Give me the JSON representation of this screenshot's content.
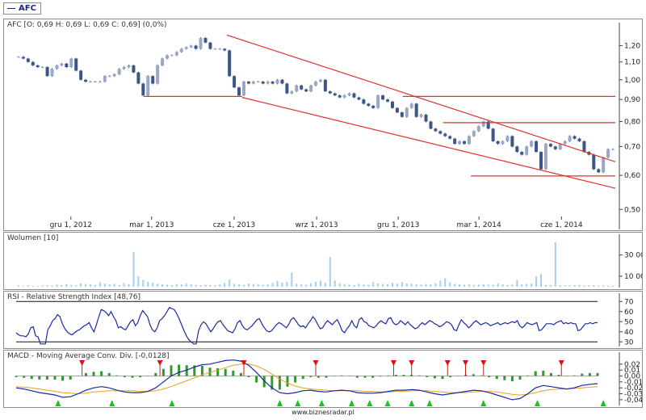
{
  "ticker_tag": "AFC",
  "footer": "www.biznesradar.pl",
  "chart_data": [
    {
      "type": "candlestick",
      "title": "AFC [O: 0,69  H: 0,69  L: 0,69  C: 0,69] (0,0%)",
      "ylim": [
        0.49,
        1.3
      ],
      "log_scale": true,
      "yticks": [
        0.5,
        0.6,
        0.7,
        0.8,
        0.9,
        1.0,
        1.1,
        1.2
      ],
      "ytick_labels": [
        "0,50",
        "0,60",
        "0,70",
        "0,80",
        "0,90",
        "1,00",
        "1,10",
        "1,20"
      ],
      "xticks": [
        {
          "label": "gru 1, 2012",
          "date": "2012-12-01"
        },
        {
          "label": "mar 1, 2013",
          "date": "2013-03-01"
        },
        {
          "label": "cze 1, 2013",
          "date": "2013-06-01"
        },
        {
          "label": "wrz 1, 2013",
          "date": "2013-09-01"
        },
        {
          "label": "gru 1, 2013",
          "date": "2013-12-01"
        },
        {
          "label": "mar 1, 2014",
          "date": "2014-03-01"
        },
        {
          "label": "cze 1, 2014",
          "date": "2014-06-01"
        }
      ],
      "xrange": [
        "2012-10-01",
        "2014-07-31"
      ],
      "up_color": "#9aa8c6",
      "down_color": "#3c5688",
      "closes": [
        1.13,
        1.12,
        1.1,
        1.08,
        1.07,
        1.07,
        1.02,
        1.06,
        1.08,
        1.09,
        1.07,
        1.12,
        1.05,
        1.0,
        0.99,
        0.99,
        0.99,
        0.99,
        1.02,
        1.02,
        1.03,
        1.06,
        1.07,
        1.08,
        1.04,
        0.98,
        0.92,
        1.02,
        0.98,
        1.08,
        1.12,
        1.14,
        1.14,
        1.16,
        1.18,
        1.19,
        1.2,
        1.18,
        1.25,
        1.22,
        1.18,
        1.18,
        1.18,
        1.17,
        1.02,
        0.96,
        0.92,
        0.99,
        0.98,
        0.99,
        0.99,
        0.98,
        0.99,
        0.98,
        1.0,
        0.98,
        0.93,
        0.94,
        0.97,
        0.95,
        0.94,
        0.97,
        0.99,
        1.0,
        0.94,
        0.93,
        0.92,
        0.91,
        0.92,
        0.93,
        0.91,
        0.9,
        0.88,
        0.87,
        0.86,
        0.92,
        0.9,
        0.89,
        0.86,
        0.84,
        0.82,
        0.86,
        0.88,
        0.82,
        0.83,
        0.8,
        0.77,
        0.76,
        0.75,
        0.74,
        0.73,
        0.71,
        0.72,
        0.71,
        0.74,
        0.76,
        0.78,
        0.8,
        0.77,
        0.72,
        0.71,
        0.72,
        0.74,
        0.7,
        0.68,
        0.67,
        0.7,
        0.72,
        0.68,
        0.62,
        0.71,
        0.7,
        0.69,
        0.71,
        0.72,
        0.74,
        0.73,
        0.72,
        0.68,
        0.67,
        0.62,
        0.61,
        0.66,
        0.69,
        0.69
      ],
      "channel_lines": [
        {
          "from": [
            "2013-05-24",
            1.27
          ],
          "to": [
            "2014-07-31",
            0.645
          ]
        },
        {
          "from": [
            "2013-06-10",
            0.91
          ],
          "to": [
            "2014-07-31",
            0.56
          ]
        }
      ],
      "horizontal_lines": [
        {
          "from": "2013-02-20",
          "to": "2013-06-10",
          "value": 0.915
        },
        {
          "from": "2013-12-06",
          "to": "2014-07-31",
          "value": 0.915
        },
        {
          "from": "2014-01-20",
          "to": "2014-07-31",
          "value": 0.795
        },
        {
          "from": "2014-02-20",
          "to": "2014-07-31",
          "value": 0.598
        }
      ],
      "line_color": "#e03030"
    },
    {
      "type": "bar",
      "title": "Wolumen [10]",
      "ylim": [
        0,
        45000
      ],
      "yticks": [
        10000,
        30000
      ],
      "ytick_labels": [
        "10 000",
        "30 000"
      ],
      "color": "#a6cef2",
      "values": [
        1200,
        800,
        1500,
        900,
        700,
        1100,
        1300,
        900,
        2100,
        1600,
        2500,
        1800,
        1400,
        3200,
        2600,
        2200,
        1700,
        4200,
        3000,
        2400,
        2800,
        1700,
        3500,
        2600,
        33000,
        10000,
        6500,
        4800,
        3800,
        2800,
        2300,
        1900,
        1600,
        2700,
        2200,
        3000,
        2200,
        1800,
        1400,
        2000,
        1700,
        1500,
        2400,
        3600,
        6800,
        2800,
        2200,
        1800,
        3000,
        2600,
        2400,
        1900,
        2200,
        3400,
        5600,
        3800,
        4600,
        13500,
        3000,
        2400,
        2000,
        3200,
        4600,
        5800,
        3800,
        28000,
        5800,
        3300,
        2700,
        2000,
        1600,
        2700,
        2100,
        1900,
        4600,
        3100,
        2700,
        2400,
        3600,
        2800,
        4300,
        3000,
        2900,
        2200,
        2000,
        2600,
        2200,
        3300,
        5800,
        8000,
        4100,
        2700,
        2300,
        1900,
        2200,
        1700,
        2000,
        2500,
        2000,
        1800,
        3200,
        2300,
        1700,
        2000,
        6600,
        2200,
        2600,
        3000,
        9800,
        12000,
        1800,
        1600,
        42000,
        1500,
        1300,
        1200,
        1500,
        1800,
        1200,
        1500,
        1400,
        1200,
        1100,
        1000,
        900
      ]
    },
    {
      "type": "line",
      "title": "RSI - Relative Strength Index [48,76]",
      "ylim": [
        27,
        75
      ],
      "yticks": [
        30,
        40,
        50,
        60,
        70
      ],
      "ytick_labels": [
        "30",
        "40",
        "50",
        "60",
        "70"
      ],
      "hlines": [
        70,
        30
      ],
      "color": "#1a2aa0",
      "values": [
        39,
        37,
        36,
        36,
        35,
        38,
        44,
        45,
        36,
        35,
        28,
        28,
        28,
        42,
        46,
        51,
        53,
        57,
        55,
        48,
        43,
        40,
        38,
        37,
        39,
        41,
        42,
        44,
        46,
        47,
        49,
        44,
        40,
        47,
        55,
        62,
        61,
        59,
        56,
        60,
        55,
        51,
        44,
        45,
        43,
        42,
        46,
        50,
        52,
        46,
        49,
        56,
        61,
        58,
        55,
        47,
        42,
        40,
        44,
        51,
        53,
        56,
        60,
        64,
        63,
        62,
        58,
        53,
        47,
        41,
        36,
        32,
        30,
        28,
        28,
        41,
        47,
        50,
        48,
        44,
        40,
        43,
        47,
        50,
        51,
        47,
        44,
        41,
        40,
        39,
        43,
        49,
        51,
        46,
        43,
        42,
        44,
        46,
        49,
        52,
        53,
        48,
        44,
        41,
        40,
        41,
        44,
        47,
        49,
        48,
        46,
        44,
        47,
        52,
        54,
        51,
        47,
        45,
        46,
        44,
        48,
        51,
        55,
        52,
        47,
        43,
        44,
        48,
        51,
        49,
        47,
        50,
        52,
        47,
        41,
        39,
        43,
        46,
        51,
        46,
        44,
        52,
        54,
        50,
        49,
        46,
        45,
        44,
        46,
        49,
        51,
        49,
        48,
        53,
        54,
        49,
        47,
        48,
        51,
        49,
        47,
        50,
        47,
        45,
        43,
        44,
        47,
        49,
        47,
        49,
        51,
        50,
        48,
        47,
        45,
        46,
        48,
        50,
        49,
        47,
        42,
        41,
        47,
        52,
        49,
        47,
        44,
        46,
        49,
        51,
        49,
        47,
        48,
        49,
        48,
        46,
        47,
        48,
        49,
        47,
        48,
        49,
        48,
        49,
        50,
        49,
        51,
        46,
        44,
        46,
        49,
        48,
        47,
        48,
        49,
        41,
        42,
        45,
        48,
        48,
        48,
        47,
        49,
        50,
        51,
        48,
        49,
        48,
        49,
        48,
        48,
        41,
        42,
        45,
        48,
        48,
        49,
        48,
        49,
        49
      ]
    },
    {
      "type": "line",
      "title": "MACD - Moving Average Conv. Div. [-0,0128]",
      "ylim": [
        -0.047,
        0.032
      ],
      "yticks": [
        0.02,
        0.01,
        0,
        -0.01,
        -0.02,
        -0.03,
        -0.04
      ],
      "ytick_labels": [
        "0,02",
        "0,01",
        "0,00",
        "-0,01",
        "-0,02",
        "-0,03",
        "-0,04"
      ],
      "macd_color": "#1a2aa0",
      "signal_color": "#e8a020",
      "hist_color": "#2e9a2e",
      "macd": [
        -0.02,
        -0.022,
        -0.025,
        -0.028,
        -0.03,
        -0.032,
        -0.036,
        -0.035,
        -0.03,
        -0.024,
        -0.02,
        -0.018,
        -0.02,
        -0.024,
        -0.027,
        -0.028,
        -0.028,
        -0.026,
        -0.02,
        -0.01,
        0.0,
        0.006,
        0.01,
        0.015,
        0.019,
        0.02,
        0.023,
        0.026,
        0.027,
        0.025,
        0.018,
        0.006,
        -0.008,
        -0.02,
        -0.028,
        -0.03,
        -0.028,
        -0.025,
        -0.024,
        -0.026,
        -0.027,
        -0.025,
        -0.024,
        -0.025,
        -0.028,
        -0.029,
        -0.029,
        -0.028,
        -0.026,
        -0.024,
        -0.024,
        -0.023,
        -0.024,
        -0.027,
        -0.03,
        -0.032,
        -0.03,
        -0.028,
        -0.026,
        -0.024,
        -0.025,
        -0.028,
        -0.032,
        -0.036,
        -0.04,
        -0.038,
        -0.03,
        -0.02,
        -0.016,
        -0.018,
        -0.02,
        -0.022,
        -0.02,
        -0.016,
        -0.014,
        -0.013
      ],
      "signal": [
        -0.018,
        -0.019,
        -0.02,
        -0.022,
        -0.024,
        -0.026,
        -0.028,
        -0.029,
        -0.03,
        -0.029,
        -0.027,
        -0.026,
        -0.025,
        -0.025,
        -0.025,
        -0.025,
        -0.026,
        -0.026,
        -0.025,
        -0.022,
        -0.018,
        -0.013,
        -0.008,
        -0.003,
        0.002,
        0.006,
        0.01,
        0.014,
        0.018,
        0.02,
        0.02,
        0.017,
        0.011,
        0.003,
        -0.005,
        -0.012,
        -0.017,
        -0.02,
        -0.022,
        -0.023,
        -0.024,
        -0.025,
        -0.025,
        -0.025,
        -0.025,
        -0.026,
        -0.026,
        -0.027,
        -0.027,
        -0.026,
        -0.026,
        -0.025,
        -0.025,
        -0.025,
        -0.026,
        -0.027,
        -0.028,
        -0.028,
        -0.028,
        -0.027,
        -0.026,
        -0.026,
        -0.027,
        -0.029,
        -0.031,
        -0.032,
        -0.031,
        -0.028,
        -0.025,
        -0.023,
        -0.022,
        -0.022,
        -0.021,
        -0.02,
        -0.019,
        -0.018
      ],
      "sell_signals_at": [
        0.11,
        0.24,
        0.38,
        0.5,
        0.63,
        0.66,
        0.72,
        0.75,
        0.78,
        0.91
      ],
      "buy_signals_at": [
        0.07,
        0.16,
        0.26,
        0.44,
        0.47,
        0.51,
        0.56,
        0.59,
        0.62,
        0.66,
        0.69,
        0.78,
        0.87,
        0.98
      ]
    }
  ]
}
